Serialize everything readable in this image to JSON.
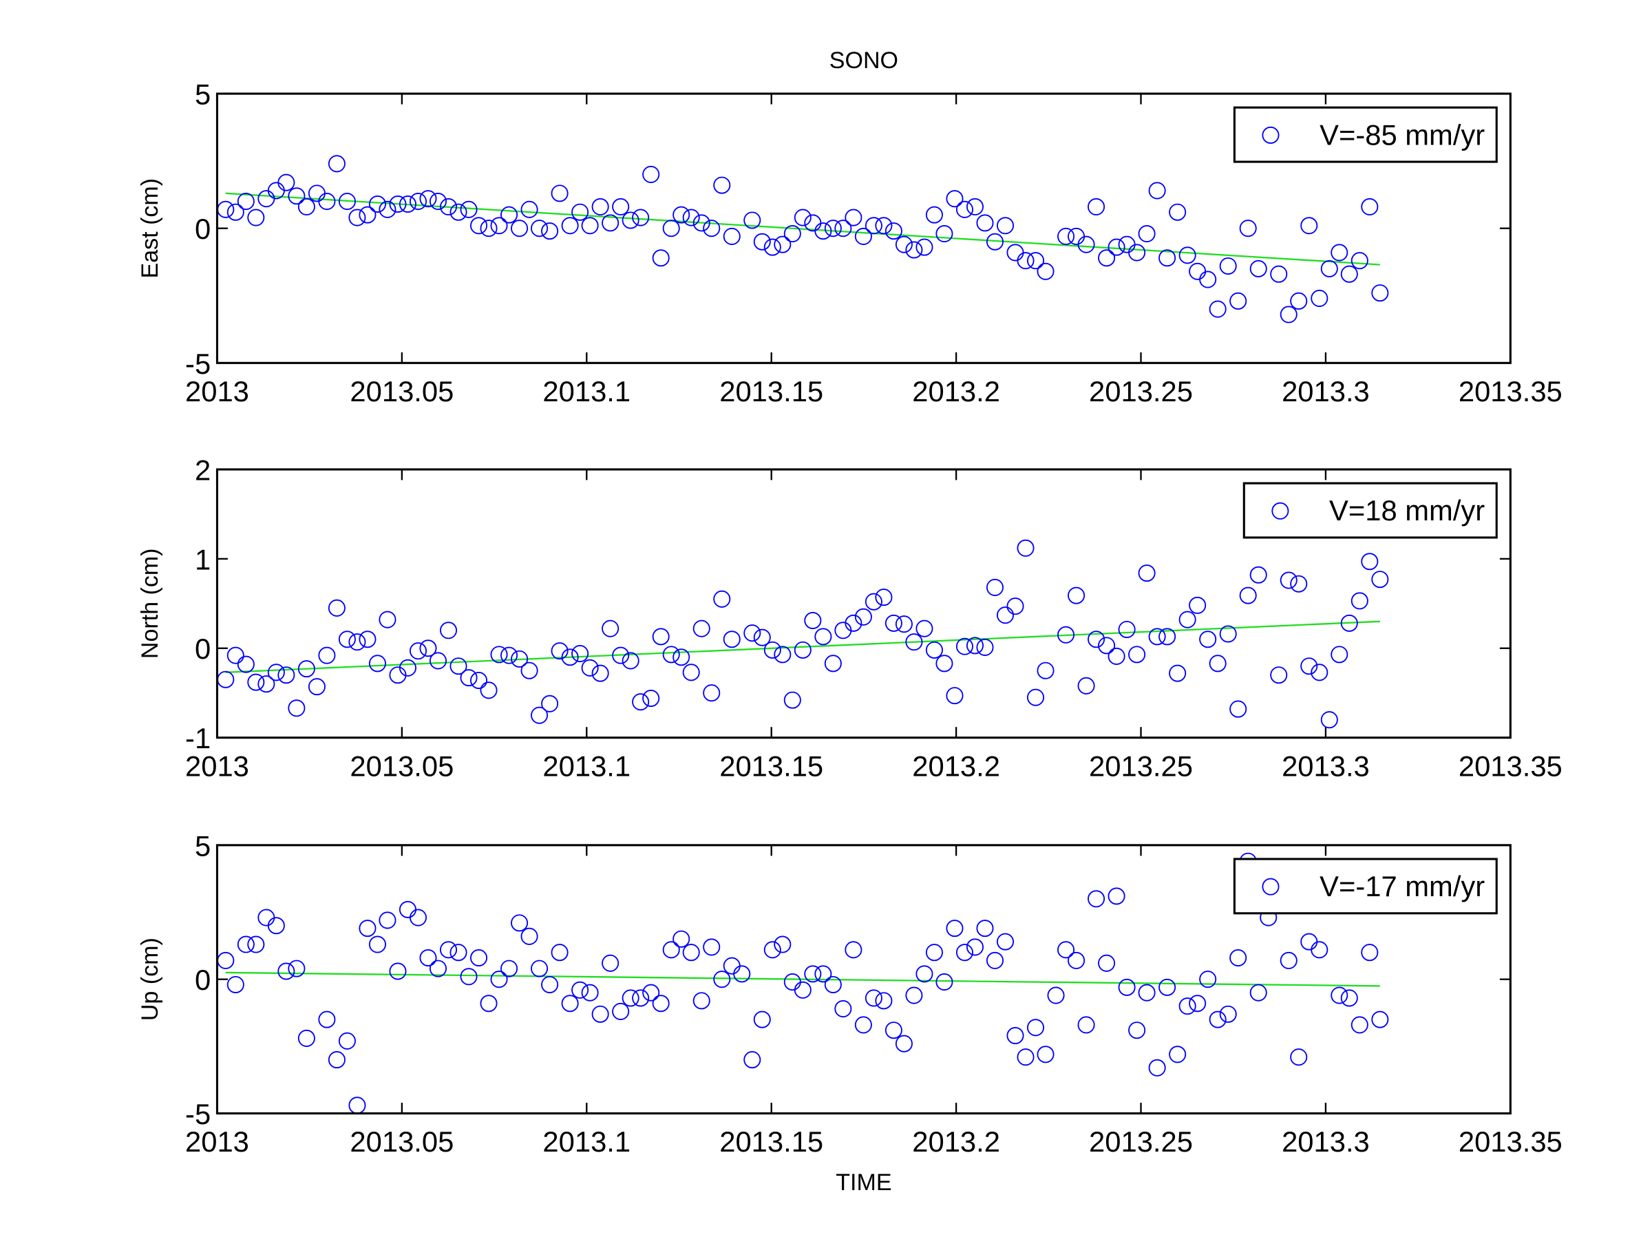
{
  "chart_data": [
    {
      "type": "scatter",
      "title": "SONO",
      "ylabel": "East (cm)",
      "x": [
        2013.0023,
        2013.005,
        2013.0078,
        2013.0105,
        2013.0133,
        2013.016,
        2013.0187,
        2013.0215,
        2013.0242,
        2013.027,
        2013.0297,
        2013.0324,
        2013.0352,
        2013.0379,
        2013.0407,
        2013.0434,
        2013.0461,
        2013.0489,
        2013.0516,
        2013.0544,
        2013.0571,
        2013.0598,
        2013.0626,
        2013.0653,
        2013.0681,
        2013.0708,
        2013.0735,
        2013.0763,
        2013.079,
        2013.0818,
        2013.0845,
        2013.0872,
        2013.09,
        2013.0927,
        2013.0955,
        2013.0982,
        2013.1009,
        2013.1037,
        2013.1064,
        2013.1092,
        2013.1119,
        2013.1146,
        2013.1174,
        2013.1201,
        2013.1229,
        2013.1256,
        2013.1283,
        2013.1311,
        2013.1338,
        2013.1366,
        2013.1393,
        2013.142,
        2013.1448,
        2013.1475,
        2013.1503,
        2013.153,
        2013.1557,
        2013.1585,
        2013.1612,
        2013.164,
        2013.1667,
        2013.1694,
        2013.1722,
        2013.1749,
        2013.1777,
        2013.1804,
        2013.1831,
        2013.1859,
        2013.1886,
        2013.1914,
        2013.1941,
        2013.1968,
        2013.1996,
        2013.2023,
        2013.2051,
        2013.2078,
        2013.2105,
        2013.2133,
        2013.216,
        2013.2188,
        2013.2215,
        2013.2242,
        2013.227,
        2013.2297,
        2013.2325,
        2013.2352,
        2013.2379,
        2013.2407,
        2013.2434,
        2013.2462,
        2013.2489,
        2013.2516,
        2013.2544,
        2013.2571,
        2013.2599,
        2013.2626,
        2013.2653,
        2013.2681,
        2013.2708,
        2013.2736,
        2013.2763,
        2013.279,
        2013.2818,
        2013.2845,
        2013.2873,
        2013.29,
        2013.2927,
        2013.2955,
        2013.2983,
        2013.301,
        2013.3037,
        2013.3064,
        2013.3092,
        2013.3119,
        2013.3147
      ],
      "series": [
        {
          "name": "V=-85 mm/yr",
          "color": "#0000ff",
          "values": [
            0.7,
            0.6,
            1.0,
            0.4,
            1.1,
            1.4,
            1.7,
            1.2,
            0.8,
            1.3,
            1.0,
            2.4,
            1.0,
            0.4,
            0.5,
            0.9,
            0.7,
            0.9,
            0.9,
            1.0,
            1.1,
            1.0,
            0.8,
            0.6,
            0.7,
            0.1,
            0.0,
            0.1,
            0.5,
            0.0,
            0.7,
            0.0,
            -0.1,
            1.3,
            0.1,
            0.6,
            0.1,
            0.8,
            0.2,
            0.8,
            0.3,
            0.4,
            2.0,
            -1.1,
            0.0,
            0.5,
            0.4,
            0.2,
            0.0,
            1.6,
            -0.3,
            null,
            0.3,
            -0.5,
            -0.7,
            -0.6,
            -0.2,
            0.4,
            0.2,
            -0.1,
            0.0,
            0.0,
            0.4,
            -0.3,
            0.1,
            0.1,
            -0.1,
            -0.6,
            -0.8,
            -0.7,
            0.5,
            -0.2,
            1.1,
            0.7,
            0.8,
            0.2,
            -0.5,
            0.1,
            -0.9,
            -1.2,
            -1.2,
            -1.6,
            null,
            -0.3,
            -0.3,
            -0.6,
            0.8,
            -1.1,
            -0.7,
            -0.6,
            -0.9,
            -0.2,
            1.4,
            -1.1,
            0.6,
            -1.0,
            -1.6,
            -1.9,
            -3.0,
            -1.4,
            -2.7,
            0.0,
            -1.5,
            null,
            -1.7,
            -3.2,
            -2.7,
            0.1,
            -2.6,
            -1.5,
            -0.9,
            -1.7,
            -1.2,
            0.8,
            -2.4
          ]
        }
      ],
      "fit": {
        "color": "#22dd22",
        "x": [
          2013.0023,
          2013.3147
        ],
        "values": [
          1.3,
          -1.35
        ]
      },
      "xlim": [
        2013,
        2013.35
      ],
      "xticks": [
        2013,
        2013.05,
        2013.1,
        2013.15,
        2013.2,
        2013.25,
        2013.3,
        2013.35
      ],
      "ylim": [
        -5,
        5
      ],
      "yticks": [
        -5,
        0,
        5
      ],
      "legend": "upper right"
    },
    {
      "type": "scatter",
      "ylabel": "North (cm)",
      "x": [
        2013.0023,
        2013.005,
        2013.0078,
        2013.0105,
        2013.0133,
        2013.016,
        2013.0187,
        2013.0215,
        2013.0242,
        2013.027,
        2013.0297,
        2013.0324,
        2013.0352,
        2013.0379,
        2013.0407,
        2013.0434,
        2013.0461,
        2013.0489,
        2013.0516,
        2013.0544,
        2013.0571,
        2013.0598,
        2013.0626,
        2013.0653,
        2013.0681,
        2013.0708,
        2013.0735,
        2013.0763,
        2013.079,
        2013.0818,
        2013.0845,
        2013.0872,
        2013.09,
        2013.0927,
        2013.0955,
        2013.0982,
        2013.1009,
        2013.1037,
        2013.1064,
        2013.1092,
        2013.1119,
        2013.1146,
        2013.1174,
        2013.1201,
        2013.1229,
        2013.1256,
        2013.1283,
        2013.1311,
        2013.1338,
        2013.1366,
        2013.1393,
        2013.142,
        2013.1448,
        2013.1475,
        2013.1503,
        2013.153,
        2013.1557,
        2013.1585,
        2013.1612,
        2013.164,
        2013.1667,
        2013.1694,
        2013.1722,
        2013.1749,
        2013.1777,
        2013.1804,
        2013.1831,
        2013.1859,
        2013.1886,
        2013.1914,
        2013.1941,
        2013.1968,
        2013.1996,
        2013.2023,
        2013.2051,
        2013.2078,
        2013.2105,
        2013.2133,
        2013.216,
        2013.2188,
        2013.2215,
        2013.2242,
        2013.227,
        2013.2297,
        2013.2325,
        2013.2352,
        2013.2379,
        2013.2407,
        2013.2434,
        2013.2462,
        2013.2489,
        2013.2516,
        2013.2544,
        2013.2571,
        2013.2599,
        2013.2626,
        2013.2653,
        2013.2681,
        2013.2708,
        2013.2736,
        2013.2763,
        2013.279,
        2013.2818,
        2013.2845,
        2013.2873,
        2013.29,
        2013.2927,
        2013.2955,
        2013.2983,
        2013.301,
        2013.3037,
        2013.3064,
        2013.3092,
        2013.3119,
        2013.3147
      ],
      "series": [
        {
          "name": "V=18 mm/yr",
          "color": "#0000ff",
          "values": [
            -0.35,
            -0.08,
            -0.18,
            -0.38,
            -0.4,
            -0.27,
            -0.3,
            -0.67,
            -0.23,
            -0.43,
            -0.08,
            0.45,
            0.1,
            0.07,
            0.1,
            -0.17,
            0.32,
            -0.3,
            -0.22,
            -0.03,
            0.0,
            -0.14,
            0.2,
            -0.2,
            -0.33,
            -0.36,
            -0.47,
            -0.07,
            -0.08,
            -0.12,
            -0.25,
            -0.75,
            -0.62,
            -0.03,
            -0.1,
            -0.06,
            -0.22,
            -0.28,
            0.22,
            -0.08,
            -0.14,
            -0.6,
            -0.56,
            0.13,
            -0.07,
            -0.1,
            -0.27,
            0.22,
            -0.5,
            0.55,
            0.1,
            null,
            0.17,
            0.12,
            -0.02,
            -0.07,
            -0.58,
            -0.02,
            0.31,
            0.13,
            -0.17,
            0.2,
            0.28,
            0.35,
            0.52,
            0.57,
            0.28,
            0.27,
            0.07,
            0.22,
            -0.02,
            -0.17,
            -0.53,
            0.02,
            0.03,
            0.01,
            0.68,
            0.37,
            0.47,
            1.12,
            -0.55,
            -0.25,
            null,
            0.15,
            0.59,
            -0.42,
            0.1,
            0.03,
            -0.09,
            0.21,
            -0.07,
            0.84,
            0.13,
            0.13,
            -0.28,
            0.32,
            0.48,
            0.1,
            -0.17,
            0.16,
            -0.68,
            0.59,
            0.82,
            null,
            -0.3,
            0.76,
            0.72,
            -0.2,
            -0.27,
            -0.8,
            -0.07,
            0.28,
            0.53,
            0.97,
            0.77
          ]
        }
      ],
      "fit": {
        "color": "#22dd22",
        "x": [
          2013.0023,
          2013.3147
        ],
        "values": [
          -0.27,
          0.3
        ]
      },
      "xlim": [
        2013,
        2013.35
      ],
      "xticks": [
        2013,
        2013.05,
        2013.1,
        2013.15,
        2013.2,
        2013.25,
        2013.3,
        2013.35
      ],
      "ylim": [
        -1,
        2
      ],
      "yticks": [
        -1,
        0,
        1,
        2
      ],
      "legend": "upper right"
    },
    {
      "type": "scatter",
      "ylabel": "Up (cm)",
      "xlabel": "TIME",
      "x": [
        2013.0023,
        2013.005,
        2013.0078,
        2013.0105,
        2013.0133,
        2013.016,
        2013.0187,
        2013.0215,
        2013.0242,
        2013.027,
        2013.0297,
        2013.0324,
        2013.0352,
        2013.0379,
        2013.0407,
        2013.0434,
        2013.0461,
        2013.0489,
        2013.0516,
        2013.0544,
        2013.0571,
        2013.0598,
        2013.0626,
        2013.0653,
        2013.0681,
        2013.0708,
        2013.0735,
        2013.0763,
        2013.079,
        2013.0818,
        2013.0845,
        2013.0872,
        2013.09,
        2013.0927,
        2013.0955,
        2013.0982,
        2013.1009,
        2013.1037,
        2013.1064,
        2013.1092,
        2013.1119,
        2013.1146,
        2013.1174,
        2013.1201,
        2013.1229,
        2013.1256,
        2013.1283,
        2013.1311,
        2013.1338,
        2013.1366,
        2013.1393,
        2013.142,
        2013.1448,
        2013.1475,
        2013.1503,
        2013.153,
        2013.1557,
        2013.1585,
        2013.1612,
        2013.164,
        2013.1667,
        2013.1694,
        2013.1722,
        2013.1749,
        2013.1777,
        2013.1804,
        2013.1831,
        2013.1859,
        2013.1886,
        2013.1914,
        2013.1941,
        2013.1968,
        2013.1996,
        2013.2023,
        2013.2051,
        2013.2078,
        2013.2105,
        2013.2133,
        2013.216,
        2013.2188,
        2013.2215,
        2013.2242,
        2013.227,
        2013.2297,
        2013.2325,
        2013.2352,
        2013.2379,
        2013.2407,
        2013.2434,
        2013.2462,
        2013.2489,
        2013.2516,
        2013.2544,
        2013.2571,
        2013.2599,
        2013.2626,
        2013.2653,
        2013.2681,
        2013.2708,
        2013.2736,
        2013.2763,
        2013.279,
        2013.2818,
        2013.2845,
        2013.2873,
        2013.29,
        2013.2927,
        2013.2955,
        2013.2983,
        2013.301,
        2013.3037,
        2013.3064,
        2013.3092,
        2013.3119,
        2013.3147
      ],
      "series": [
        {
          "name": "V=-17 mm/yr",
          "color": "#0000ff",
          "values": [
            0.7,
            -0.2,
            1.3,
            1.3,
            2.3,
            2.0,
            0.3,
            0.4,
            -2.2,
            null,
            -1.5,
            -3.0,
            -2.3,
            -4.7,
            1.9,
            1.3,
            2.2,
            0.3,
            2.6,
            2.3,
            0.8,
            0.4,
            1.1,
            1.0,
            0.1,
            0.8,
            -0.9,
            0.0,
            0.4,
            2.1,
            1.6,
            0.4,
            -0.2,
            1.0,
            -0.9,
            -0.4,
            -0.5,
            -1.3,
            0.6,
            -1.2,
            -0.7,
            -0.7,
            -0.5,
            -0.9,
            1.1,
            1.5,
            1.0,
            -0.8,
            1.2,
            0.0,
            0.5,
            0.2,
            -3.0,
            -1.5,
            1.1,
            1.3,
            -0.1,
            -0.4,
            0.2,
            0.2,
            -0.2,
            -1.1,
            1.1,
            -1.7,
            -0.7,
            -0.8,
            -1.9,
            -2.4,
            -0.6,
            0.2,
            1.0,
            -0.1,
            1.9,
            1.0,
            1.2,
            1.9,
            0.7,
            1.4,
            -2.1,
            -2.9,
            -1.8,
            -2.8,
            -0.6,
            1.1,
            0.7,
            -1.7,
            3.0,
            0.6,
            3.1,
            -0.3,
            -1.9,
            -0.5,
            -3.3,
            -0.3,
            -2.8,
            -1.0,
            -0.9,
            0.0,
            -1.5,
            -1.3,
            0.8,
            4.4,
            -0.5,
            2.3,
            null,
            0.7,
            -2.9,
            1.4,
            1.1,
            null,
            -0.6,
            -0.7,
            -1.7,
            1.0,
            -1.5
          ]
        }
      ],
      "fit": {
        "color": "#22dd22",
        "x": [
          2013.0023,
          2013.3147
        ],
        "values": [
          0.25,
          -0.25
        ]
      },
      "xlim": [
        2013,
        2013.35
      ],
      "xticks": [
        2013,
        2013.05,
        2013.1,
        2013.15,
        2013.2,
        2013.25,
        2013.3,
        2013.35
      ],
      "ylim": [
        -5,
        5
      ],
      "yticks": [
        -5,
        0,
        5
      ],
      "legend": "upper right"
    }
  ]
}
